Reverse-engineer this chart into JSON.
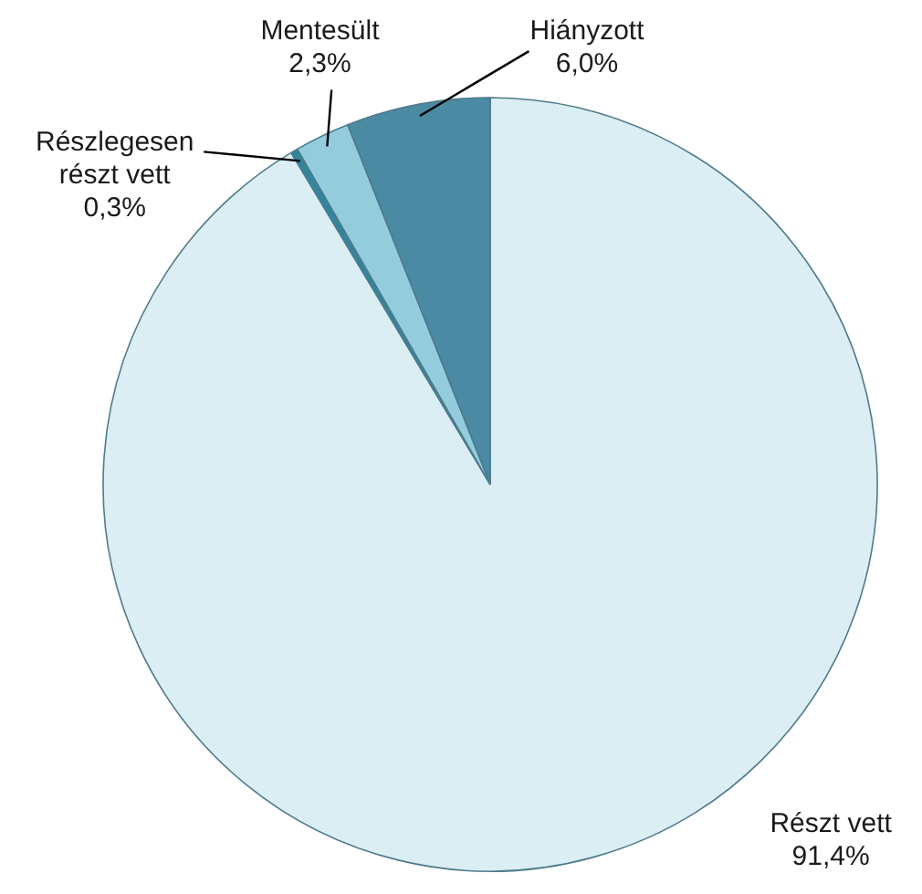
{
  "chart_data": {
    "type": "pie",
    "categories": [
      "Részt vett",
      "Részlegesen részt vett",
      "Mentesült",
      "Hiányzott"
    ],
    "values": [
      91.4,
      0.3,
      2.3,
      6.0
    ],
    "colors": [
      "#daeef3",
      "#31859c",
      "#93cddd",
      "#4a8aa3"
    ],
    "value_labels": [
      "91,4%",
      "0,3%",
      "2,3%",
      "6,0%"
    ]
  }
}
